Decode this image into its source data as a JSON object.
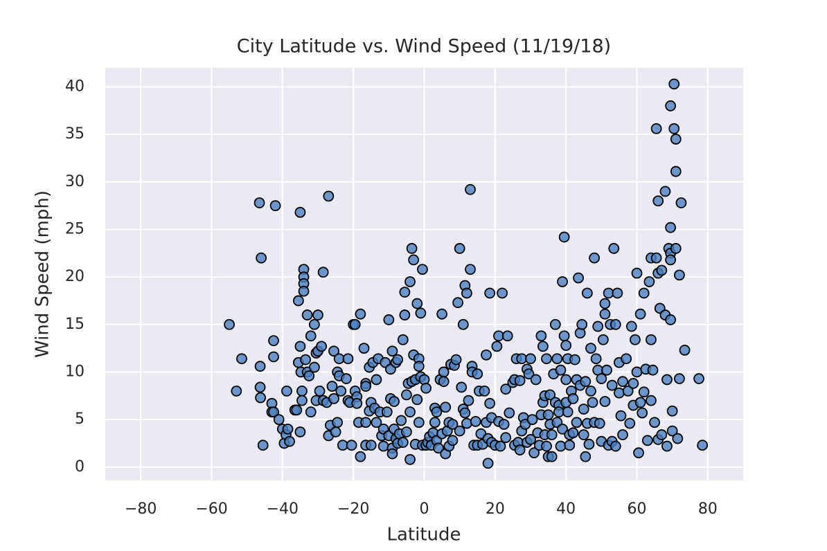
{
  "chart_data": {
    "type": "scatter",
    "title": "City Latitude vs. Wind Speed (11/19/18)",
    "x_label": "Latitude",
    "y_label": "Wind Speed (mph)",
    "xlim": [
      -90,
      90
    ],
    "ylim": [
      -1.4,
      42.0
    ],
    "xticks": [
      {
        "value": -80,
        "label": "−80"
      },
      {
        "value": -60,
        "label": "−60"
      },
      {
        "value": -40,
        "label": "−40"
      },
      {
        "value": -20,
        "label": "−20"
      },
      0,
      20,
      40,
      60,
      80
    ],
    "yticks": [
      0,
      5,
      10,
      15,
      20,
      25,
      30,
      35,
      40
    ],
    "grid": true,
    "background": "#eaeaf2",
    "color": "#4c7fbf",
    "edgecolor": "#000000",
    "x": [
      -55,
      -53,
      -51.5,
      -46.5,
      -46,
      -46.3,
      -46.3,
      -46.2,
      -45.5,
      -42,
      -42.5,
      -42.5,
      -43,
      -43,
      -42.5,
      -41,
      -40,
      -39.5,
      -39,
      -38.5,
      -38,
      -38.8,
      -36.5,
      -36,
      -35.5,
      -35.5,
      -35,
      -35,
      -34.8,
      -34.5,
      -34.5,
      -35,
      -34,
      -34,
      -34,
      -34,
      -33.5,
      -33,
      -33,
      -32.5,
      -32,
      -32,
      -31,
      -31,
      -30.5,
      -30.5,
      -30,
      -30,
      -29.5,
      -29,
      -28.5,
      -28.5,
      -27.5,
      -27,
      -27,
      -26.5,
      -26,
      -25.5,
      -25.5,
      -25,
      -24.5,
      -24.5,
      -24,
      -24,
      -23.5,
      -23,
      -22,
      -21.5,
      -21.5,
      -21,
      -20.5,
      -20,
      -19.5,
      -19.5,
      -19,
      -19,
      -18.5,
      -18,
      -18,
      -17,
      -16.5,
      -16.5,
      -16.5,
      -16.5,
      -15.5,
      -15.5,
      -15,
      -15,
      -14.5,
      -14,
      -13.5,
      -13.5,
      -13,
      -12.5,
      -12,
      -11.5,
      -11.5,
      -11,
      -10.5,
      -10,
      -10,
      -9.5,
      -9.5,
      -9,
      -9,
      -9,
      -8.5,
      -8.5,
      -8,
      -8,
      -7.5,
      -7.5,
      -7,
      -6.5,
      -6,
      -6,
      -5.5,
      -5.5,
      -5,
      -5,
      -4.5,
      -4,
      -4,
      -4,
      -3.5,
      -3.5,
      -3,
      -3,
      -2.5,
      -2.5,
      -2,
      -2,
      -1.5,
      -1.5,
      -1.5,
      -1,
      -1,
      -0.5,
      -0.5,
      0,
      0.5,
      0.5,
      1,
      1.5,
      2,
      2.5,
      3,
      3,
      3.5,
      3.5,
      4,
      4.5,
      5,
      5,
      5.5,
      5.5,
      6,
      6,
      6.5,
      7,
      7,
      7.5,
      8,
      8,
      8.5,
      9,
      9.5,
      10,
      10,
      10.5,
      11,
      11,
      11.5,
      11.5,
      12,
      12,
      12.5,
      13,
      13,
      13.5,
      13.5,
      14,
      14.5,
      15,
      15,
      15.5,
      16,
      16.5,
      17,
      17.5,
      17.5,
      18,
      18,
      18.5,
      18.5,
      19,
      19,
      20,
      20.5,
      21,
      21,
      21.5,
      22,
      22.5,
      23,
      23,
      23.5,
      24,
      25,
      25.5,
      25.5,
      26,
      26.5,
      27,
      27,
      27.5,
      27.5,
      28,
      28.5,
      29,
      29,
      29.5,
      30,
      30,
      30.5,
      31,
      31.5,
      32,
      32.5,
      33,
      33,
      33.5,
      33.5,
      34,
      34,
      34.5,
      34.5,
      35,
      35,
      35.5,
      35.5,
      36,
      36,
      36.5,
      37,
      37,
      37.5,
      37.5,
      38,
      38,
      38.5,
      38.5,
      39,
      39,
      39.5,
      39.5,
      40,
      40,
      40,
      40.5,
      40.5,
      41,
      41,
      41.5,
      42,
      42,
      42.5,
      43,
      43,
      43.5,
      44,
      44,
      44.5,
      45,
      45,
      45.5,
      45.5,
      46,
      46,
      46.5,
      47,
      47,
      47.5,
      48,
      48,
      48.5,
      49,
      49,
      49.5,
      50,
      50,
      50.5,
      51,
      51,
      51,
      51.5,
      52,
      52,
      52.5,
      53,
      53,
      53.5,
      54,
      54,
      54.5,
      55,
      55,
      55.5,
      56,
      56,
      57,
      57.5,
      58,
      58.5,
      59,
      59,
      59.5,
      60,
      60,
      60.5,
      61,
      61,
      61.5,
      62,
      62,
      62.5,
      63,
      63.5,
      64,
      64,
      64,
      64.5,
      65,
      65.5,
      65.5,
      66,
      66,
      66,
      66.5,
      67,
      67,
      68,
      68,
      68.5,
      68.5,
      69,
      69.5,
      69.5,
      69.5,
      69.5,
      69.5,
      70,
      70,
      70.5,
      70.5,
      71,
      71,
      71,
      71.5,
      72,
      72,
      72.5,
      73.5,
      77.5,
      78.5
    ],
    "values": [
      15,
      8,
      11.4,
      27.8,
      22,
      10.6,
      8.4,
      7.3,
      2.3,
      27.5,
      13.3,
      11.6,
      6.7,
      5.8,
      5.8,
      5,
      4,
      2.5,
      3.4,
      4,
      2.7,
      8,
      6,
      6,
      17.5,
      11,
      26.8,
      12.7,
      10,
      8,
      7,
      3.7,
      20.8,
      20,
      19.3,
      18.5,
      11.3,
      10,
      16,
      9.6,
      5.8,
      13.8,
      15,
      10.5,
      12,
      7,
      16,
      12.2,
      8,
      12.7,
      20.5,
      7,
      6.8,
      3.3,
      28.5,
      4.4,
      8.5,
      12.2,
      7.2,
      3.7,
      4.7,
      10,
      11.4,
      9.6,
      8,
      2.3,
      9.3,
      11.4,
      7,
      6.8,
      2.3,
      15,
      15,
      8,
      7.4,
      6.7,
      4.7,
      16.1,
      1.1,
      12.5,
      8.8,
      8.5,
      4.7,
      2.3,
      10.5,
      5.9,
      2.3,
      6.8,
      11,
      6.2,
      9.2,
      4.7,
      11.4,
      5.8,
      3.3,
      2.2,
      4,
      11,
      5.8,
      3.3,
      15.5,
      10.3,
      7.2,
      2,
      12.2,
      1.4,
      6.9,
      4,
      11,
      3,
      2.5,
      11.3,
      3.5,
      4.9,
      2.6,
      13.4,
      16,
      18.4,
      7.6,
      3.7,
      8.8,
      0.8,
      19.5,
      5.8,
      23,
      9,
      21.8,
      11.8,
      2.4,
      9.2,
      17.2,
      7.1,
      11.4,
      10.6,
      4.7,
      16.2,
      9.5,
      20.8,
      2.3,
      9.2,
      8.3,
      2.3,
      2.6,
      3.2,
      2.3,
      3.6,
      6.2,
      4.7,
      5.8,
      2.8,
      2,
      9.2,
      16.1,
      3.5,
      10,
      9,
      6.3,
      1.4,
      3.8,
      4.7,
      2.2,
      10.8,
      4.5,
      2.8,
      10.7,
      11.3,
      17.3,
      3.8,
      23,
      8.4,
      15,
      6.1,
      5.7,
      19.1,
      4.6,
      18.3,
      7,
      29.2,
      20.8,
      10.6,
      10,
      2.3,
      4.8,
      2.3,
      9.8,
      8,
      3.5,
      2.4,
      8,
      4.7,
      11.8,
      0.4,
      3,
      18.3,
      6.7,
      5.2,
      2.6,
      2.3,
      12.7,
      13.8,
      4.8,
      2.2,
      18.3,
      4.5,
      8.2,
      3.1,
      13.8,
      5.7,
      8.9,
      9.2,
      2.3,
      11.4,
      2.6,
      9.1,
      1.8,
      11.4,
      3.8,
      5.2,
      4.5,
      10.3,
      2.6,
      9.8,
      11.4,
      2.9,
      5,
      1.5,
      9.2,
      3.6,
      2.3,
      5.5,
      13.8,
      12.7,
      6.8,
      7.5,
      3.4,
      11.4,
      2.2,
      1.1,
      5.5,
      7.6,
      4.5,
      3.4,
      1.1,
      9.8,
      6.8,
      15,
      11.4,
      4.7,
      6.5,
      5.8,
      10.2,
      2.2,
      4,
      19.5,
      24.2,
      13.8,
      12.8,
      9.2,
      6.8,
      11.4,
      5.8,
      3.4,
      2.3,
      8,
      7.2,
      3.6,
      11.3,
      9.2,
      4.7,
      19.9,
      14.1,
      8.6,
      15,
      3.4,
      6.1,
      1.1,
      9,
      4.6,
      18.3,
      2.4,
      12.5,
      8,
      6.8,
      4.7,
      22,
      11.4,
      14.8,
      10.2,
      4.6,
      9.3,
      2.7,
      13.4,
      17.2,
      16.1,
      6.9,
      10.2,
      2.3,
      18.3,
      15,
      8.6,
      2.7,
      23,
      15,
      2.2,
      18.3,
      11,
      7.8,
      5.4,
      9,
      3.4,
      11.4,
      8,
      4.6,
      14.8,
      8.8,
      6.5,
      13.4,
      20.4,
      10,
      1.5,
      16.1,
      6.8,
      5.7,
      7.9,
      18.3,
      10.3,
      2.8,
      19.5,
      13.4,
      22,
      7,
      10.2,
      4.7,
      35.6,
      22,
      28,
      20.4,
      2.9,
      16.7,
      3.4,
      20.7,
      16,
      29,
      9.2,
      2.2,
      23,
      25.2,
      22.5,
      38,
      21.8,
      15.5,
      5.9,
      3.8,
      40.3,
      35.6,
      34.5,
      23,
      31.1,
      3,
      20.2,
      9.3,
      27.8,
      12.3,
      9.3,
      2.3
    ]
  }
}
